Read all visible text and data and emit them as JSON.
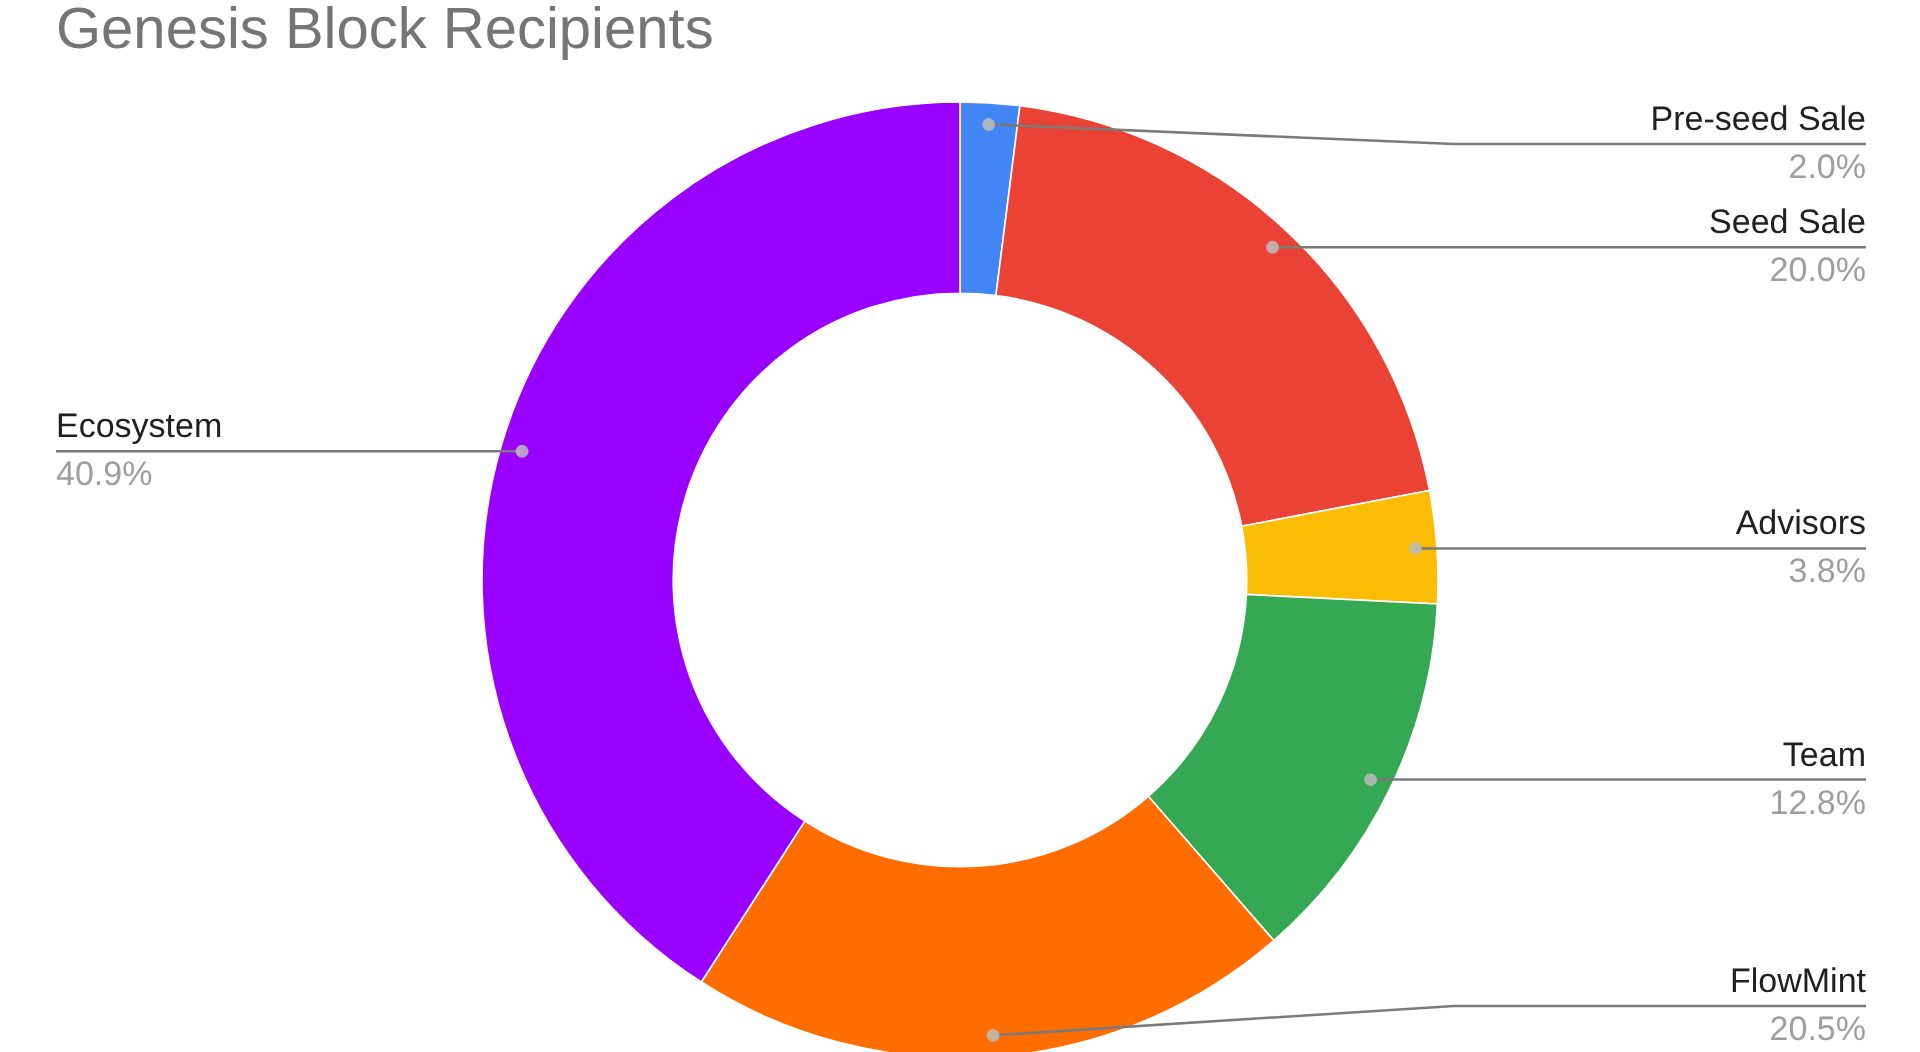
{
  "chart_data": {
    "type": "donut",
    "title": "Genesis Block Recipients",
    "categories": [
      "Pre-seed Sale",
      "Seed Sale",
      "Advisors",
      "Team",
      "FlowMint",
      "Ecosystem"
    ],
    "values": [
      2.0,
      20.0,
      3.8,
      12.8,
      20.5,
      40.9
    ],
    "value_labels": [
      "2.0%",
      "20.0%",
      "3.8%",
      "12.8%",
      "20.5%",
      "40.9%"
    ],
    "colors": [
      "#4285f4",
      "#ea4335",
      "#fbbc04",
      "#34a853",
      "#ff6d01",
      "#9900ff"
    ]
  }
}
